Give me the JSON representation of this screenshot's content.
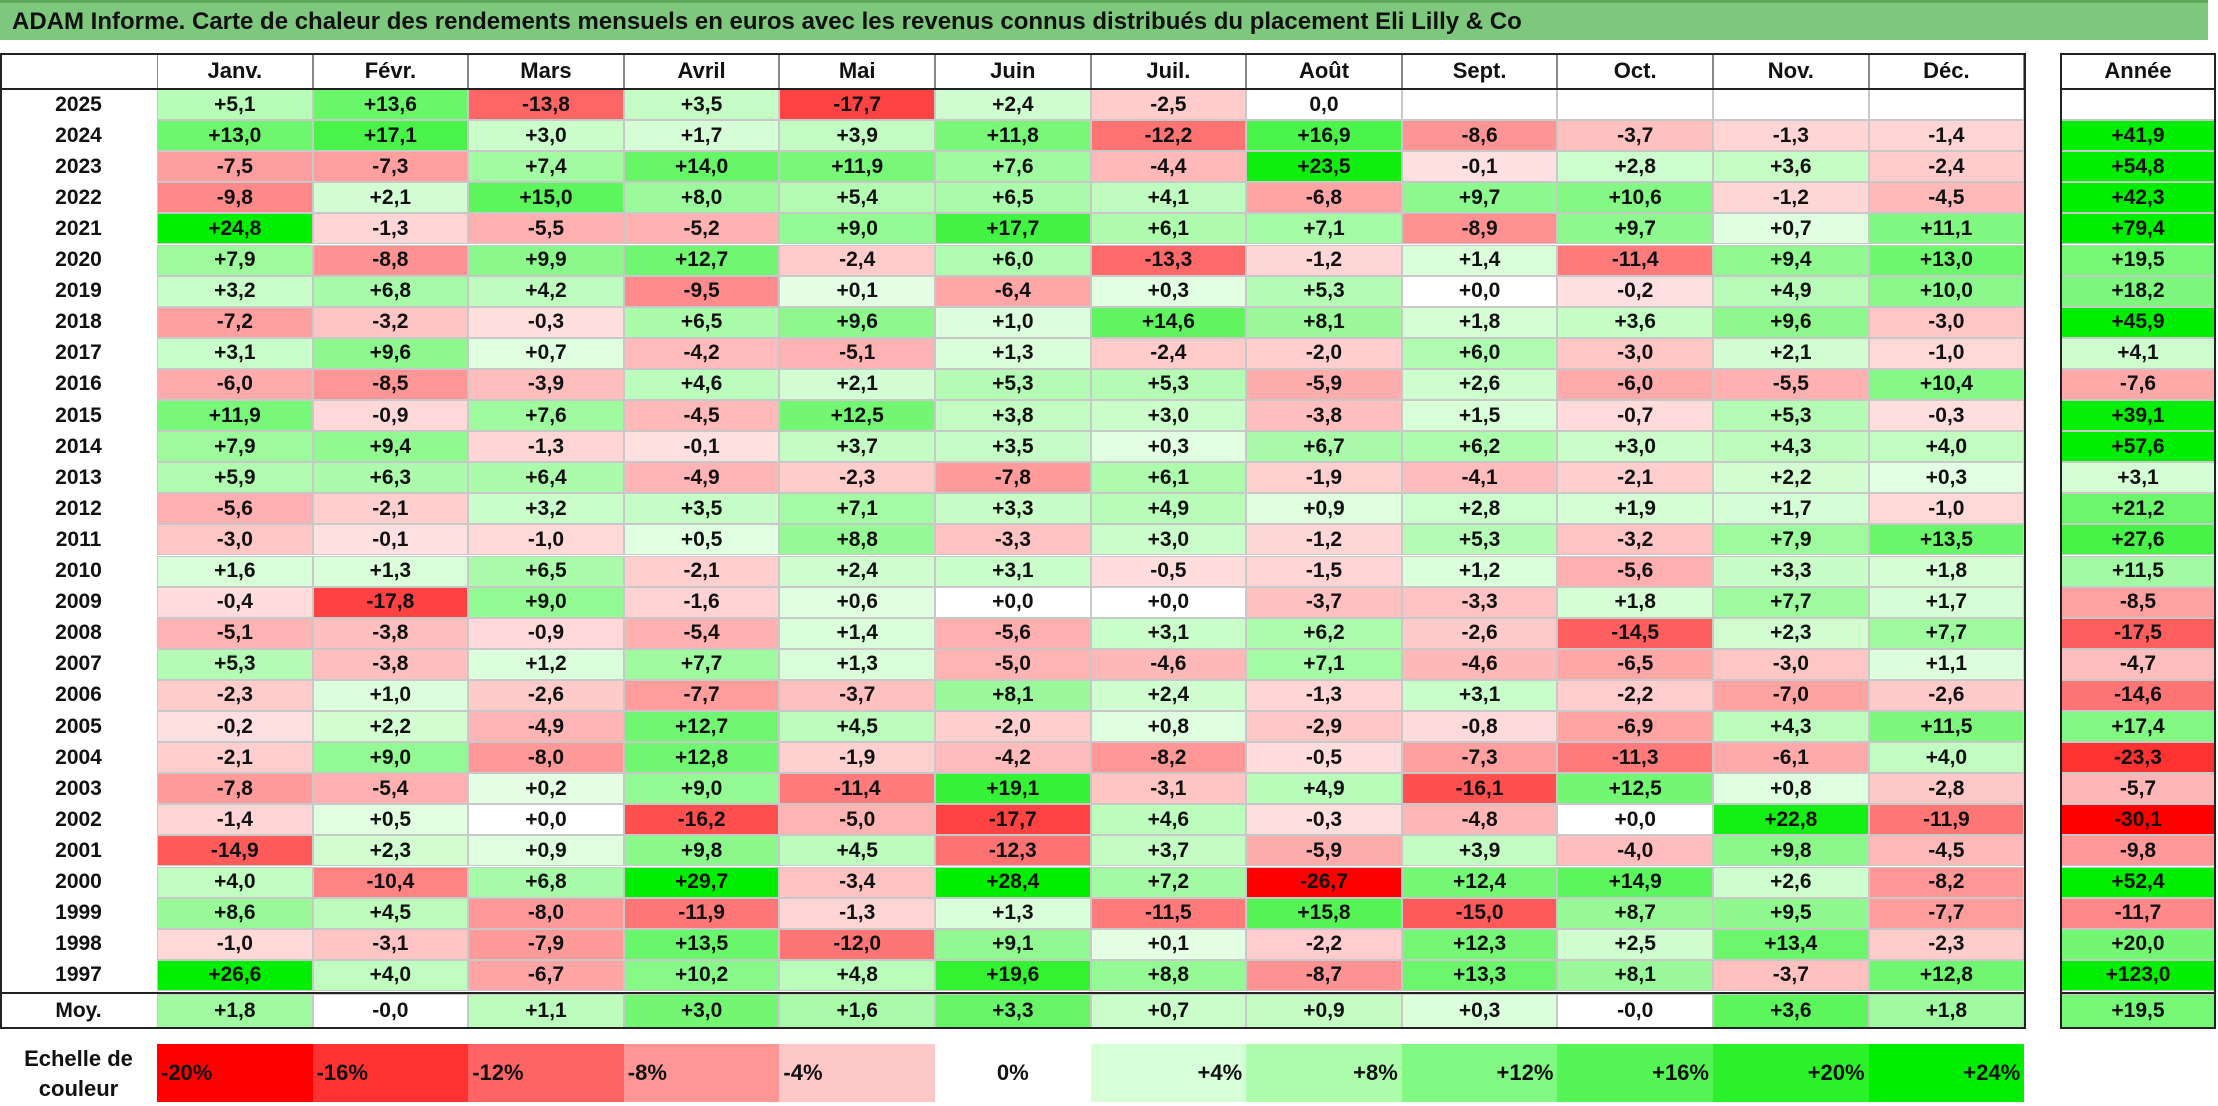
{
  "title": "ADAM Informe. Carte de chaleur des rendements mensuels en euros avec les revenus connus distribués du placement Eli Lilly & Co",
  "colors": {
    "red": "#ff0000",
    "white": "#ffffff",
    "green": "#00ee00",
    "title_bg": "#7dc87d"
  },
  "chart_data": {
    "type": "heatmap",
    "title": "ADAM Informe. Carte de chaleur des rendements mensuels en euros avec les revenus connus distribués du placement Eli Lilly & Co",
    "months": [
      "Janv.",
      "Févr.",
      "Mars",
      "Avril",
      "Mai",
      "Juin",
      "Juil.",
      "Août",
      "Sept.",
      "Oct.",
      "Nov.",
      "Déc."
    ],
    "year_header": "Année",
    "avg_label": "Moy.",
    "rows": [
      {
        "year": "2025",
        "values": [
          "+5,1",
          "+13,6",
          "-13,8",
          "+3,5",
          "-17,7",
          "+2,4",
          "-2,5",
          "0,0",
          "",
          "",
          "",
          ""
        ],
        "annual": ""
      },
      {
        "year": "2024",
        "values": [
          "+13,0",
          "+17,1",
          "+3,0",
          "+1,7",
          "+3,9",
          "+11,8",
          "-12,2",
          "+16,9",
          "-8,6",
          "-3,7",
          "-1,3",
          "-1,4"
        ],
        "annual": "+41,9"
      },
      {
        "year": "2023",
        "values": [
          "-7,5",
          "-7,3",
          "+7,4",
          "+14,0",
          "+11,9",
          "+7,6",
          "-4,4",
          "+23,5",
          "-0,1",
          "+2,8",
          "+3,6",
          "-2,4"
        ],
        "annual": "+54,8"
      },
      {
        "year": "2022",
        "values": [
          "-9,8",
          "+2,1",
          "+15,0",
          "+8,0",
          "+5,4",
          "+6,5",
          "+4,1",
          "-6,8",
          "+9,7",
          "+10,6",
          "-1,2",
          "-4,5"
        ],
        "annual": "+42,3"
      },
      {
        "year": "2021",
        "values": [
          "+24,8",
          "-1,3",
          "-5,5",
          "-5,2",
          "+9,0",
          "+17,7",
          "+6,1",
          "+7,1",
          "-8,9",
          "+9,7",
          "+0,7",
          "+11,1"
        ],
        "annual": "+79,4"
      },
      {
        "year": "2020",
        "values": [
          "+7,9",
          "-8,8",
          "+9,9",
          "+12,7",
          "-2,4",
          "+6,0",
          "-13,3",
          "-1,2",
          "+1,4",
          "-11,4",
          "+9,4",
          "+13,0"
        ],
        "annual": "+19,5"
      },
      {
        "year": "2019",
        "values": [
          "+3,2",
          "+6,8",
          "+4,2",
          "-9,5",
          "+0,1",
          "-6,4",
          "+0,3",
          "+5,3",
          "+0,0",
          "-0,2",
          "+4,9",
          "+10,0"
        ],
        "annual": "+18,2"
      },
      {
        "year": "2018",
        "values": [
          "-7,2",
          "-3,2",
          "-0,3",
          "+6,5",
          "+9,6",
          "+1,0",
          "+14,6",
          "+8,1",
          "+1,8",
          "+3,6",
          "+9,6",
          "-3,0"
        ],
        "annual": "+45,9"
      },
      {
        "year": "2017",
        "values": [
          "+3,1",
          "+9,6",
          "+0,7",
          "-4,2",
          "-5,1",
          "+1,3",
          "-2,4",
          "-2,0",
          "+6,0",
          "-3,0",
          "+2,1",
          "-1,0"
        ],
        "annual": "+4,1"
      },
      {
        "year": "2016",
        "values": [
          "-6,0",
          "-8,5",
          "-3,9",
          "+4,6",
          "+2,1",
          "+5,3",
          "+5,3",
          "-5,9",
          "+2,6",
          "-6,0",
          "-5,5",
          "+10,4"
        ],
        "annual": "-7,6"
      },
      {
        "year": "2015",
        "values": [
          "+11,9",
          "-0,9",
          "+7,6",
          "-4,5",
          "+12,5",
          "+3,8",
          "+3,0",
          "-3,8",
          "+1,5",
          "-0,7",
          "+5,3",
          "-0,3"
        ],
        "annual": "+39,1"
      },
      {
        "year": "2014",
        "values": [
          "+7,9",
          "+9,4",
          "-1,3",
          "-0,1",
          "+3,7",
          "+3,5",
          "+0,3",
          "+6,7",
          "+6,2",
          "+3,0",
          "+4,3",
          "+4,0"
        ],
        "annual": "+57,6"
      },
      {
        "year": "2013",
        "values": [
          "+5,9",
          "+6,3",
          "+6,4",
          "-4,9",
          "-2,3",
          "-7,8",
          "+6,1",
          "-1,9",
          "-4,1",
          "-2,1",
          "+2,2",
          "+0,3"
        ],
        "annual": "+3,1"
      },
      {
        "year": "2012",
        "values": [
          "-5,6",
          "-2,1",
          "+3,2",
          "+3,5",
          "+7,1",
          "+3,3",
          "+4,9",
          "+0,9",
          "+2,8",
          "+1,9",
          "+1,7",
          "-1,0"
        ],
        "annual": "+21,2"
      },
      {
        "year": "2011",
        "values": [
          "-3,0",
          "-0,1",
          "-1,0",
          "+0,5",
          "+8,8",
          "-3,3",
          "+3,0",
          "-1,2",
          "+5,3",
          "-3,2",
          "+7,9",
          "+13,5"
        ],
        "annual": "+27,6"
      },
      {
        "year": "2010",
        "values": [
          "+1,6",
          "+1,3",
          "+6,5",
          "-2,1",
          "+2,4",
          "+3,1",
          "-0,5",
          "-1,5",
          "+1,2",
          "-5,6",
          "+3,3",
          "+1,8"
        ],
        "annual": "+11,5"
      },
      {
        "year": "2009",
        "values": [
          "-0,4",
          "-17,8",
          "+9,0",
          "-1,6",
          "+0,6",
          "+0,0",
          "+0,0",
          "-3,7",
          "-3,3",
          "+1,8",
          "+7,7",
          "+1,7"
        ],
        "annual": "-8,5"
      },
      {
        "year": "2008",
        "values": [
          "-5,1",
          "-3,8",
          "-0,9",
          "-5,4",
          "+1,4",
          "-5,6",
          "+3,1",
          "+6,2",
          "-2,6",
          "-14,5",
          "+2,3",
          "+7,7"
        ],
        "annual": "-17,5"
      },
      {
        "year": "2007",
        "values": [
          "+5,3",
          "-3,8",
          "+1,2",
          "+7,7",
          "+1,3",
          "-5,0",
          "-4,6",
          "+7,1",
          "-4,6",
          "-6,5",
          "-3,0",
          "+1,1"
        ],
        "annual": "-4,7"
      },
      {
        "year": "2006",
        "values": [
          "-2,3",
          "+1,0",
          "-2,6",
          "-7,7",
          "-3,7",
          "+8,1",
          "+2,4",
          "-1,3",
          "+3,1",
          "-2,2",
          "-7,0",
          "-2,6"
        ],
        "annual": "-14,6"
      },
      {
        "year": "2005",
        "values": [
          "-0,2",
          "+2,2",
          "-4,9",
          "+12,7",
          "+4,5",
          "-2,0",
          "+0,8",
          "-2,9",
          "-0,8",
          "-6,9",
          "+4,3",
          "+11,5"
        ],
        "annual": "+17,4"
      },
      {
        "year": "2004",
        "values": [
          "-2,1",
          "+9,0",
          "-8,0",
          "+12,8",
          "-1,9",
          "-4,2",
          "-8,2",
          "-0,5",
          "-7,3",
          "-11,3",
          "-6,1",
          "+4,0"
        ],
        "annual": "-23,3"
      },
      {
        "year": "2003",
        "values": [
          "-7,8",
          "-5,4",
          "+0,2",
          "+9,0",
          "-11,4",
          "+19,1",
          "-3,1",
          "+4,9",
          "-16,1",
          "+12,5",
          "+0,8",
          "-2,8"
        ],
        "annual": "-5,7"
      },
      {
        "year": "2002",
        "values": [
          "-1,4",
          "+0,5",
          "+0,0",
          "-16,2",
          "-5,0",
          "-17,7",
          "+4,6",
          "-0,3",
          "-4,8",
          "+0,0",
          "+22,8",
          "-11,9"
        ],
        "annual": "-30,1"
      },
      {
        "year": "2001",
        "values": [
          "-14,9",
          "+2,3",
          "+0,9",
          "+9,8",
          "+4,5",
          "-12,3",
          "+3,7",
          "-5,9",
          "+3,9",
          "-4,0",
          "+9,8",
          "-4,5"
        ],
        "annual": "-9,8"
      },
      {
        "year": "2000",
        "values": [
          "+4,0",
          "-10,4",
          "+6,8",
          "+29,7",
          "-3,4",
          "+28,4",
          "+7,2",
          "-26,7",
          "+12,4",
          "+14,9",
          "+2,6",
          "-8,2"
        ],
        "annual": "+52,4"
      },
      {
        "year": "1999",
        "values": [
          "+8,6",
          "+4,5",
          "-8,0",
          "-11,9",
          "-1,3",
          "+1,3",
          "-11,5",
          "+15,8",
          "-15,0",
          "+8,7",
          "+9,5",
          "-7,7"
        ],
        "annual": "-11,7"
      },
      {
        "year": "1998",
        "values": [
          "-1,0",
          "-3,1",
          "-7,9",
          "+13,5",
          "-12,0",
          "+9,1",
          "+0,1",
          "-2,2",
          "+12,3",
          "+2,5",
          "+13,4",
          "-2,3"
        ],
        "annual": "+20,0"
      },
      {
        "year": "1997",
        "values": [
          "+26,6",
          "+4,0",
          "-6,7",
          "+10,2",
          "+4,8",
          "+19,6",
          "+8,8",
          "-8,7",
          "+13,3",
          "+8,1",
          "-3,7",
          "+12,8"
        ],
        "annual": "+123,0"
      }
    ],
    "average": {
      "values": [
        "+1,8",
        "-0,0",
        "+1,1",
        "+3,0",
        "+1,6",
        "+3,3",
        "+0,7",
        "+0,9",
        "+0,3",
        "-0,0",
        "+3,6",
        "+1,8"
      ],
      "annual": "+19,5"
    },
    "scale_label_line1": "Echelle de",
    "scale_label_line2": "couleur",
    "scale": [
      "-20%",
      "-16%",
      "-12%",
      "-8%",
      "-4%",
      "0%",
      "+4%",
      "+8%",
      "+12%",
      "+16%",
      "+20%",
      "+24%"
    ],
    "scale_values": [
      -20,
      -16,
      -12,
      -8,
      -4,
      0,
      4,
      8,
      12,
      16,
      20,
      24
    ]
  }
}
